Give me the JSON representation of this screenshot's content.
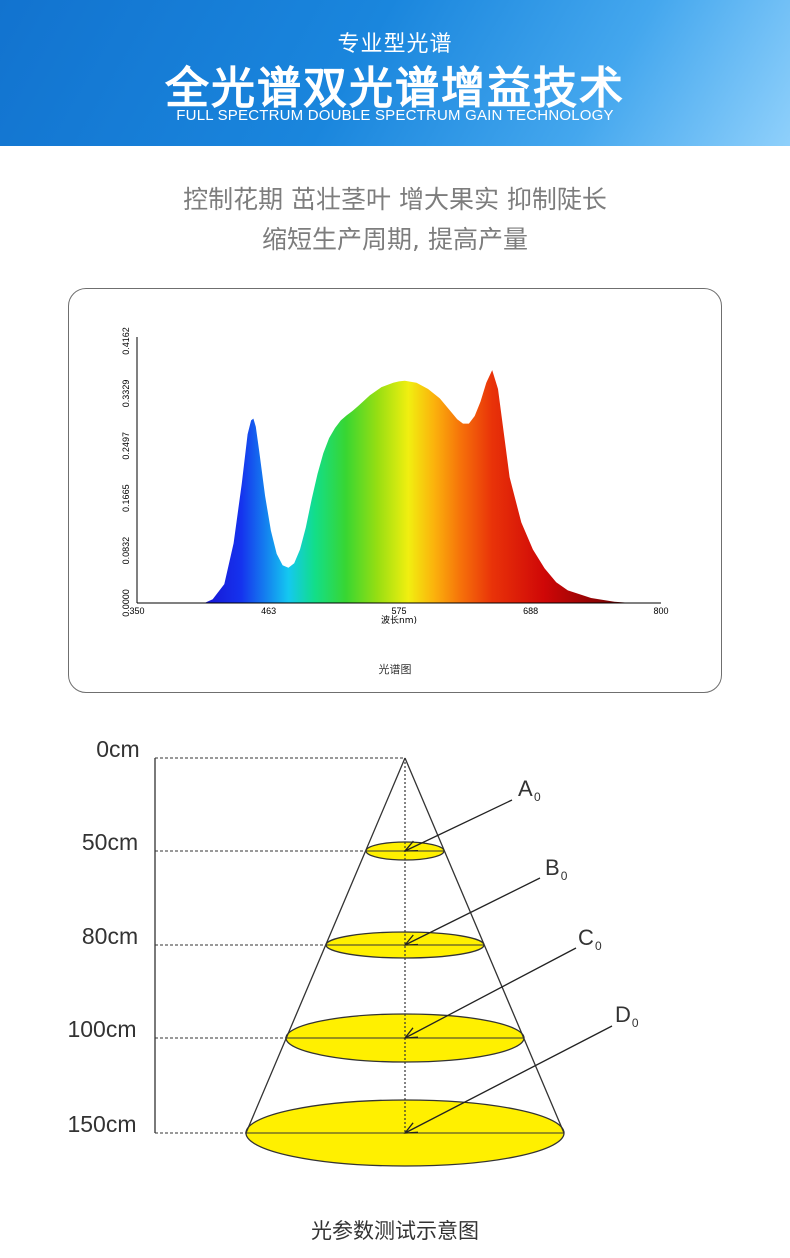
{
  "banner": {
    "subtitle": "专业型光谱",
    "title": "全光谱双光谱增益技术",
    "english": "FULL SPECTRUM DOUBLE SPECTRUM GAIN TECHNOLOGY",
    "gradient": [
      "#1273cf",
      "#8fd0fb"
    ]
  },
  "tagline": {
    "line1": "控制花期 茁壮茎叶 增大果实 抑制陡长",
    "line2": "缩短生产周期, 提高产量"
  },
  "chart_data": {
    "type": "area",
    "title": "光谱图",
    "xlabel": "波长nm)",
    "ylabel": "",
    "xlim": [
      350,
      800
    ],
    "ylim": [
      0,
      0.4162
    ],
    "x_ticks": [
      "350",
      "463",
      "575",
      "688",
      "800"
    ],
    "y_ticks": [
      "0.0000",
      "0.0832",
      "0.1665",
      "0.2497",
      "0.3329",
      "0.4162"
    ],
    "grid": false,
    "fill": "visible-spectrum color gradient (blue→cyan→green→yellow→orange→red→dark red)",
    "series": [
      {
        "x": [
          408,
          415,
          425,
          433,
          440,
          445,
          448,
          450,
          452,
          455,
          460,
          465,
          470,
          475,
          480,
          485,
          490,
          495,
          500,
          505,
          510,
          515,
          520,
          525,
          530,
          535,
          540,
          550,
          560,
          570,
          575,
          580,
          590,
          600,
          610,
          620,
          625,
          630,
          635,
          640,
          645,
          650,
          655,
          660,
          665,
          670,
          680,
          690,
          700,
          710,
          720,
          740,
          760,
          775
        ],
        "y": [
          0.0,
          0.006,
          0.03,
          0.095,
          0.19,
          0.268,
          0.29,
          0.293,
          0.28,
          0.24,
          0.17,
          0.115,
          0.078,
          0.06,
          0.056,
          0.063,
          0.085,
          0.12,
          0.165,
          0.205,
          0.238,
          0.262,
          0.278,
          0.29,
          0.298,
          0.305,
          0.313,
          0.33,
          0.343,
          0.35,
          0.352,
          0.353,
          0.35,
          0.34,
          0.325,
          0.303,
          0.292,
          0.285,
          0.285,
          0.297,
          0.32,
          0.35,
          0.37,
          0.34,
          0.27,
          0.2,
          0.128,
          0.085,
          0.055,
          0.033,
          0.02,
          0.008,
          0.002,
          0.0
        ]
      }
    ]
  },
  "cone": {
    "caption": "光参数测试示意图",
    "distances": [
      "0cm",
      "50cm",
      "80cm",
      "100cm",
      "150cm"
    ],
    "spot_labels": [
      "A",
      "B",
      "C",
      "D"
    ],
    "subscript": "0",
    "spot_color": "#fff000"
  }
}
